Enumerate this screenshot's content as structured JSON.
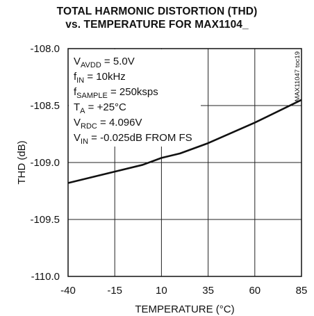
{
  "chart_data": {
    "type": "line",
    "title": "TOTAL HARMONIC DISTORTION (THD)",
    "subtitle": "vs. TEMPERATURE FOR MAX1104_",
    "xlabel": "TEMPERATURE (°C)",
    "ylabel": "THD (dB)",
    "xlim": [
      -40,
      85
    ],
    "ylim": [
      -110.0,
      -108.0
    ],
    "x_ticks": [
      -40,
      -15,
      10,
      35,
      60,
      85
    ],
    "x_tick_labels": [
      "-40",
      "-15",
      "10",
      "35",
      "60",
      "85"
    ],
    "y_ticks": [
      -108.0,
      -108.5,
      -109.0,
      -109.5,
      -110.0
    ],
    "y_tick_labels": [
      "-108.0",
      "-108.5",
      "-109.0",
      "-109.5",
      "-110.0"
    ],
    "grid": true,
    "watermark": "MAX11047 toc19",
    "annotations": [
      {
        "main": "V",
        "sub": "AVDD",
        "rest": " = 5.0V"
      },
      {
        "main": "f",
        "sub": "IN",
        "rest": " = 10kHz"
      },
      {
        "main": "f",
        "sub": "SAMPLE",
        "rest": " = 250ksps"
      },
      {
        "main": "T",
        "sub": "A",
        "rest": " = +25°C"
      },
      {
        "main": "V",
        "sub": "RDC",
        "rest": " = 4.096V"
      },
      {
        "main": "V",
        "sub": "IN",
        "rest": " = -0.025dB FROM FS"
      }
    ],
    "series": [
      {
        "x": [
          -40,
          -15,
          0,
          10,
          20,
          35,
          60,
          85
        ],
        "y": [
          -109.18,
          -109.08,
          -109.02,
          -108.96,
          -108.92,
          -108.83,
          -108.65,
          -108.45
        ]
      }
    ]
  }
}
